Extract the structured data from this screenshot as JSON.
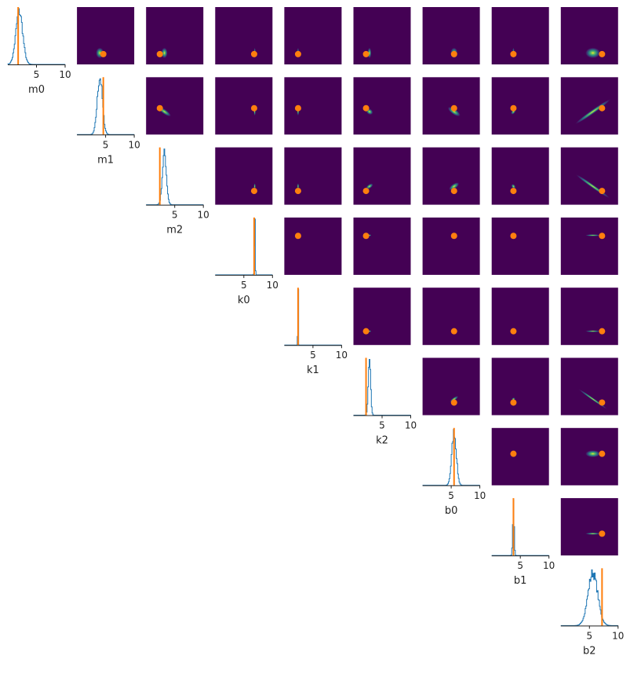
{
  "chart_data": {
    "type": "pairplot",
    "title": "",
    "variables": [
      "m0",
      "m1",
      "m2",
      "k0",
      "k1",
      "k2",
      "b0",
      "b1",
      "b2"
    ],
    "xlim": [
      0,
      10
    ],
    "xticks": [
      5,
      10
    ],
    "diagonal": {
      "type": "histogram",
      "color": "#1f77b4",
      "marginals": [
        {
          "variable": "m0",
          "mean": 2.0,
          "sd": 0.6
        },
        {
          "variable": "m1",
          "mean": 4.0,
          "sd": 0.45
        },
        {
          "variable": "m2",
          "mean": 3.2,
          "sd": 0.35
        },
        {
          "variable": "k0",
          "mean": 6.9,
          "sd": 0.07
        },
        {
          "variable": "k1",
          "mean": 2.4,
          "sd": 0.04
        },
        {
          "variable": "k2",
          "mean": 2.8,
          "sd": 0.2
        },
        {
          "variable": "b0",
          "mean": 5.5,
          "sd": 0.4
        },
        {
          "variable": "b1",
          "mean": 3.8,
          "sd": 0.12
        },
        {
          "variable": "b2",
          "mean": 5.6,
          "sd": 0.85
        }
      ]
    },
    "true_values": {
      "color": "#ff7f0e",
      "values": [
        1.8,
        4.6,
        2.4,
        6.8,
        2.4,
        2.2,
        5.5,
        3.8,
        7.2
      ]
    },
    "offdiagonal": {
      "type": "2d-density",
      "colormap": "viridis",
      "show_true_value_point": true,
      "correlations": [
        {
          "pair": [
            "m0",
            "m1"
          ],
          "rho": 0.0
        },
        {
          "pair": [
            "m0",
            "m2"
          ],
          "rho": 0.0
        },
        {
          "pair": [
            "m0",
            "k0"
          ],
          "rho": 0.0
        },
        {
          "pair": [
            "m0",
            "k1"
          ],
          "rho": 0.0
        },
        {
          "pair": [
            "m0",
            "k2"
          ],
          "rho": 0.0
        },
        {
          "pair": [
            "m0",
            "b0"
          ],
          "rho": 0.0
        },
        {
          "pair": [
            "m0",
            "b1"
          ],
          "rho": 0.0
        },
        {
          "pair": [
            "m0",
            "b2"
          ],
          "rho": 0.0
        },
        {
          "pair": [
            "m1",
            "m2"
          ],
          "rho": -0.7
        },
        {
          "pair": [
            "m1",
            "k0"
          ],
          "rho": 0.0
        },
        {
          "pair": [
            "m1",
            "k1"
          ],
          "rho": 0.0
        },
        {
          "pair": [
            "m1",
            "k2"
          ],
          "rho": -0.5
        },
        {
          "pair": [
            "m1",
            "b0"
          ],
          "rho": -0.5
        },
        {
          "pair": [
            "m1",
            "b1"
          ],
          "rho": -0.3
        },
        {
          "pair": [
            "m1",
            "b2"
          ],
          "rho": 0.85
        },
        {
          "pair": [
            "m2",
            "k0"
          ],
          "rho": 0.0
        },
        {
          "pair": [
            "m2",
            "k1"
          ],
          "rho": 0.0
        },
        {
          "pair": [
            "m2",
            "k2"
          ],
          "rho": 0.6
        },
        {
          "pair": [
            "m2",
            "b0"
          ],
          "rho": 0.3
        },
        {
          "pair": [
            "m2",
            "b1"
          ],
          "rho": 0.3
        },
        {
          "pair": [
            "m2",
            "b2"
          ],
          "rho": -0.8
        },
        {
          "pair": [
            "k0",
            "k1"
          ],
          "rho": 0.0
        },
        {
          "pair": [
            "k0",
            "k2"
          ],
          "rho": 0.0
        },
        {
          "pair": [
            "k0",
            "b0"
          ],
          "rho": 0.0
        },
        {
          "pair": [
            "k0",
            "b1"
          ],
          "rho": 0.0
        },
        {
          "pair": [
            "k0",
            "b2"
          ],
          "rho": 0.0
        },
        {
          "pair": [
            "k1",
            "k2"
          ],
          "rho": 0.0
        },
        {
          "pair": [
            "k1",
            "b0"
          ],
          "rho": 0.0
        },
        {
          "pair": [
            "k1",
            "b1"
          ],
          "rho": 0.0
        },
        {
          "pair": [
            "k1",
            "b2"
          ],
          "rho": 0.0
        },
        {
          "pair": [
            "k2",
            "b0"
          ],
          "rho": 0.2
        },
        {
          "pair": [
            "k2",
            "b1"
          ],
          "rho": 0.3
        },
        {
          "pair": [
            "k2",
            "b2"
          ],
          "rho": -0.6
        },
        {
          "pair": [
            "b0",
            "b1"
          ],
          "rho": 0.1
        },
        {
          "pair": [
            "b0",
            "b2"
          ],
          "rho": 0.0
        },
        {
          "pair": [
            "b1",
            "b2"
          ],
          "rho": 0.0
        }
      ]
    },
    "upper_triangle_only": true,
    "background_color": "#440154"
  }
}
